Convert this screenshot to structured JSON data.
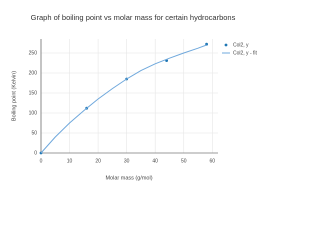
{
  "chart_data": {
    "type": "scatter",
    "title": "Graph of boiling point vs molar mass for certain hydrocarbons",
    "x_label": "Molar mass (g/mol)",
    "y_label": "Boiling point (Kelvin)",
    "xlim": [
      0,
      62
    ],
    "xticks": [
      0,
      10,
      20,
      30,
      40,
      50,
      60
    ],
    "ylim": [
      0,
      285
    ],
    "yticks": [
      0,
      50,
      100,
      150,
      200,
      250
    ],
    "grid": true,
    "legend": "top-right",
    "series": [
      {
        "name": "Col2, y",
        "color": "#1f77b4",
        "mode": "markers",
        "x": [
          0,
          16,
          30,
          44,
          58
        ],
        "values": [
          0,
          112,
          185,
          231,
          272
        ]
      },
      {
        "name": "Col2, y - fit",
        "color": "#6fa8dc",
        "mode": "lines",
        "x": [
          0,
          5,
          10,
          15,
          20,
          25,
          30,
          35,
          40,
          45,
          50,
          55,
          58
        ],
        "values": [
          0,
          40,
          75,
          106,
          135,
          161,
          185,
          206,
          223,
          237,
          250,
          262,
          270
        ]
      }
    ]
  }
}
